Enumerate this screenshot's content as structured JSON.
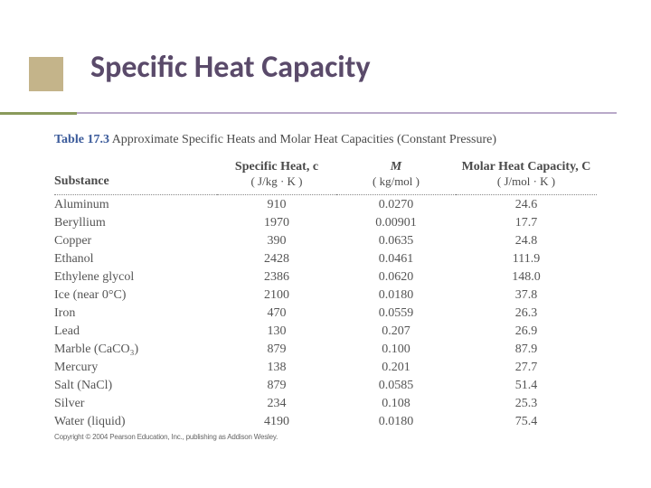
{
  "slide": {
    "title": "Specific Heat Capacity",
    "title_color": "#5a4a6a",
    "bullet_fill": "#c4b48a",
    "hline_green": "#8a9a5b",
    "hline_purple": "#b9a9c9"
  },
  "table": {
    "number": "Table 17.3",
    "caption": "Approximate Specific Heats and Molar Heat Capacities (Constant Pressure)",
    "columns": {
      "c0": "Substance",
      "c1_top": "Specific Heat, c",
      "c1_unit": "( J/kg · K )",
      "c2_top": "M",
      "c2_unit": "( kg/mol )",
      "c3_top": "Molar Heat Capacity, C",
      "c3_unit": "( J/mol · K )"
    },
    "rows": [
      {
        "s": "Aluminum",
        "c": "910",
        "m": "0.0270",
        "C": "24.6"
      },
      {
        "s": "Beryllium",
        "c": "1970",
        "m": "0.00901",
        "C": "17.7"
      },
      {
        "s": "Copper",
        "c": "390",
        "m": "0.0635",
        "C": "24.8"
      },
      {
        "s": "Ethanol",
        "c": "2428",
        "m": "0.0461",
        "C": "111.9"
      },
      {
        "s": "Ethylene glycol",
        "c": "2386",
        "m": "0.0620",
        "C": "148.0"
      },
      {
        "s": "Ice (near 0°C)",
        "c": "2100",
        "m": "0.0180",
        "C": "37.8"
      },
      {
        "s": "Iron",
        "c": "470",
        "m": "0.0559",
        "C": "26.3"
      },
      {
        "s": "Lead",
        "c": "130",
        "m": "0.207",
        "C": "26.9"
      },
      {
        "s": "Marble (CaCO₃)",
        "c": "879",
        "m": "0.100",
        "C": "87.9"
      },
      {
        "s": "Mercury",
        "c": "138",
        "m": "0.201",
        "C": "27.7"
      },
      {
        "s": "Salt (NaCl)",
        "c": "879",
        "m": "0.0585",
        "C": "51.4"
      },
      {
        "s": "Silver",
        "c": "234",
        "m": "0.108",
        "C": "25.3"
      },
      {
        "s": "Water (liquid)",
        "c": "4190",
        "m": "0.0180",
        "C": "75.4"
      }
    ]
  },
  "copyright": "Copyright © 2004 Pearson Education, Inc., publishing as Addison Wesley."
}
